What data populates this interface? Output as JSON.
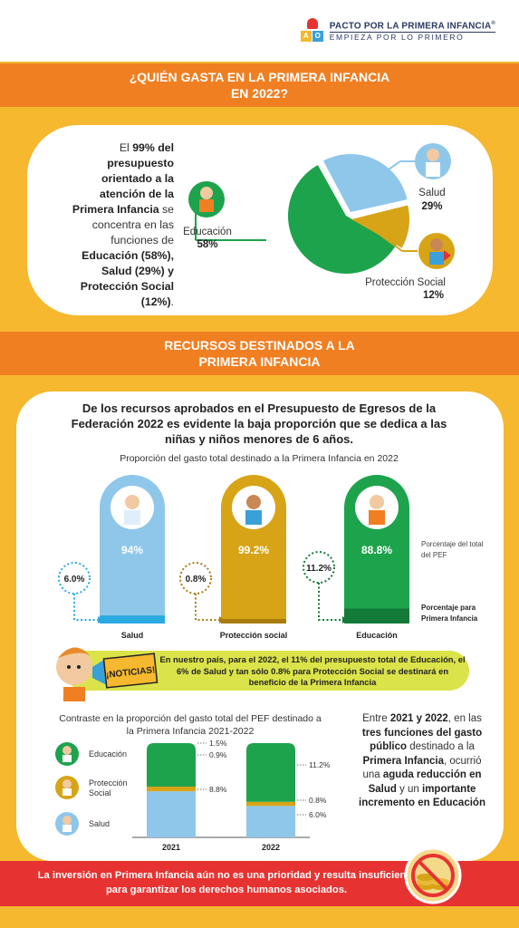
{
  "logo": {
    "line1": "PACTO POR LA PRIMERA INFANCIA",
    "reg": "®",
    "line2": "EMPIEZA POR LO PRIMERO",
    "block_letters": [
      "A",
      "O"
    ]
  },
  "section1": {
    "title_line1": "¿QUIÉN GASTA EN LA PRIMERA INFANCIA",
    "title_line2": "EN 2022?",
    "intro": {
      "t1": "El ",
      "b1": "99% del presupuesto orientado a la atención de la Primera Infancia",
      "t2": " se concentra en las funciones de ",
      "b2": "Educación (58%), Salud (29%) y Protección Social (12%)",
      "t3": "."
    }
  },
  "section2": {
    "title_line1": "RECURSOS DESTINADOS A LA",
    "title_line2": "PRIMERA INFANCIA",
    "paragraph": "De los recursos aprobados en el Presupuesto de Egresos de la Federación 2022 es evidente la baja proporción que se dedica a las niñas y niños menores de 6 años.",
    "note_total": "Porcentaje del total del PEF",
    "note_pi": "Porcentaje para Primera Infancia"
  },
  "news": {
    "badge": "¡NOTICIAS!",
    "text": "En nuestro país, para el 2022, el 11% del presupuesto total de Educación, el 6% de Salud y tan sólo 0.8% para Protección Social se destinará en beneficio de la Primera Infancia"
  },
  "right_paragraph": {
    "t1": "Entre ",
    "b1": "2021 y 2022",
    "t2": ", en las ",
    "b2": "tres funciones del gasto público",
    "t3": " destinado a la ",
    "b3": "Primera Infancia",
    "t4": ", ocurrió una ",
    "b4": "aguda reducción en Salud",
    "t5": " y un ",
    "b5": "importante incremento en Educación"
  },
  "footer": {
    "text": "La inversión en Primera Infancia aún no es una prioridad y resulta insuficiente para garantizar los derechos humanos asociados."
  },
  "colors": {
    "orange": "#f07f22",
    "yellow": "#f5b82e",
    "green": "#1ea34d",
    "blue": "#8fc7ea",
    "gold": "#d7a417",
    "red": "#e63331",
    "lime": "#dbe34a"
  },
  "chart_data": [
    {
      "type": "pie",
      "title": "",
      "slices": [
        {
          "name": "Educación",
          "value": 58,
          "label": "58%",
          "color": "#1ea34d"
        },
        {
          "name": "Salud",
          "value": 29,
          "label": "29%",
          "color": "#8fc7ea"
        },
        {
          "name": "Protección Social",
          "value": 12,
          "label": "12%",
          "color": "#d7a417"
        }
      ]
    },
    {
      "type": "bar",
      "title": "Proporción del gasto total destinado a la Primera Infancia en 2022",
      "categories": [
        "Salud",
        "Protección social",
        "Educación"
      ],
      "series": [
        {
          "name": "Porcentaje del total del PEF",
          "values": [
            94,
            99.2,
            88.8
          ],
          "labels": [
            "94%",
            "99.2%",
            "88.8%"
          ]
        },
        {
          "name": "Porcentaje para Primera Infancia",
          "values": [
            6.0,
            0.8,
            11.2
          ],
          "labels": [
            "6.0%",
            "0.8%",
            "11.2%"
          ]
        }
      ]
    },
    {
      "type": "bar",
      "stacked": true,
      "title": "Contraste en la proporción del gasto total del PEF destinado a la Primera Infancia 2021-2022",
      "categories": [
        "2021",
        "2022"
      ],
      "series": [
        {
          "name": "Salud",
          "values": [
            8.8,
            6.0
          ],
          "labels": [
            "8.8%",
            "6.0%"
          ],
          "color": "#8fc7ea"
        },
        {
          "name": "Protección Social",
          "values": [
            0.9,
            0.8
          ],
          "labels": [
            "0.9%",
            "0.8%"
          ],
          "color": "#d7a417"
        },
        {
          "name": "Educación",
          "values": [
            1.5,
            11.2
          ],
          "labels": [
            "1.5%",
            "11.2%"
          ],
          "color": "#1ea34d"
        }
      ],
      "legend": [
        "Educación",
        "Protección Social",
        "Salud"
      ]
    }
  ]
}
